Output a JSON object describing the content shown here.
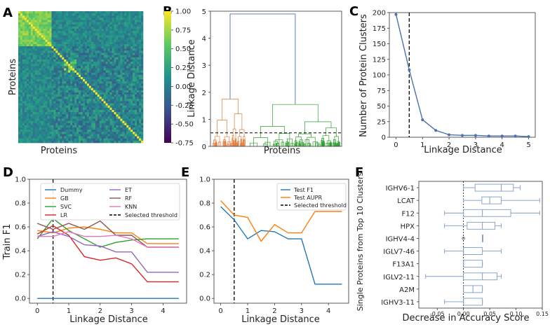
{
  "panel_labels": [
    "A",
    "B",
    "C",
    "D",
    "E",
    "F"
  ],
  "chart_data": [
    {
      "panel": "A",
      "type": "heatmap",
      "title": "",
      "xlabel": "Proteins",
      "ylabel": "Proteins",
      "colorbar_range": [
        -0.75,
        1.0
      ],
      "colorbar_ticks": [
        "1.00",
        "0.75",
        "0.50",
        "0.25",
        "0.00",
        "-0.25",
        "-0.50",
        "-0.75"
      ],
      "colormap": [
        "#440154",
        "#3b528b",
        "#21918c",
        "#5ec962",
        "#fde725"
      ]
    },
    {
      "panel": "B",
      "type": "dendrogram",
      "xlabel": "Proteins",
      "ylabel": "Linkage Distance",
      "ylim": [
        0,
        5
      ],
      "yticks": [
        "0",
        "1",
        "2",
        "3",
        "4",
        "5"
      ],
      "root_height": 4.9,
      "left_cluster_height": 1.75,
      "right_cluster_height": 1.55,
      "threshold": 0.5,
      "cluster_colors": [
        "#e07b39",
        "#2ca02c",
        "#4c72b0"
      ]
    },
    {
      "panel": "C",
      "type": "line",
      "xlabel": "Linkage Distance",
      "ylabel": "Number of Protein Clusters",
      "x": [
        0,
        0.5,
        1,
        1.5,
        2,
        2.5,
        3,
        3.5,
        4,
        4.5,
        5
      ],
      "values": [
        197,
        108,
        28,
        11,
        4,
        3,
        3,
        2,
        2,
        2,
        1
      ],
      "xlim": [
        -0.25,
        5.25
      ],
      "ylim": [
        0,
        200
      ],
      "xticks": [
        "0",
        "1",
        "2",
        "3",
        "4",
        "5"
      ],
      "yticks": [
        "0",
        "25",
        "50",
        "75",
        "100",
        "125",
        "150",
        "175",
        "200"
      ],
      "threshold": 0.5,
      "color": "#4c72b0"
    },
    {
      "panel": "D",
      "type": "line",
      "xlabel": "Linkage Distance",
      "ylabel": "Train F1",
      "x": [
        0,
        0.5,
        1,
        1.5,
        2,
        2.5,
        3,
        3.5,
        4,
        4.5
      ],
      "xlim": [
        -0.25,
        4.75
      ],
      "ylim": [
        -0.04,
        1.0
      ],
      "xticks": [
        "0",
        "1",
        "2",
        "3",
        "4"
      ],
      "yticks": [
        "0.0",
        "0.2",
        "0.4",
        "0.6",
        "0.8",
        "1.0"
      ],
      "threshold": 0.5,
      "threshold_label": "Selected threshold",
      "series": [
        {
          "name": "Dummy",
          "color": "#1f77b4",
          "values": [
            0,
            0,
            0,
            0,
            0,
            0,
            0,
            0,
            0,
            0
          ]
        },
        {
          "name": "GB",
          "color": "#ff7f0e",
          "values": [
            0.57,
            0.55,
            0.59,
            0.6,
            0.58,
            0.55,
            0.55,
            0.46,
            0.46,
            0.46
          ]
        },
        {
          "name": "SVC",
          "color": "#2ca02c",
          "values": [
            0.5,
            0.67,
            0.57,
            0.5,
            0.43,
            0.47,
            0.49,
            0.5,
            0.5,
            0.5
          ]
        },
        {
          "name": "LR",
          "color": "#d62728",
          "values": [
            0.54,
            0.61,
            0.53,
            0.35,
            0.32,
            0.34,
            0.29,
            0.14,
            0.14,
            0.14
          ]
        },
        {
          "name": "ET",
          "color": "#9467bd",
          "values": [
            0.52,
            0.56,
            0.52,
            0.45,
            0.44,
            0.39,
            0.39,
            0.22,
            0.22,
            0.22
          ]
        },
        {
          "name": "RF",
          "color": "#8c564b",
          "values": [
            0.63,
            0.58,
            0.63,
            0.58,
            0.65,
            0.53,
            0.53,
            0.43,
            0.43,
            0.43
          ]
        },
        {
          "name": "KNN",
          "color": "#e377c2",
          "values": [
            0.52,
            0.52,
            0.56,
            0.52,
            0.52,
            0.53,
            0.5,
            0.43,
            0.43,
            0.43
          ]
        }
      ]
    },
    {
      "panel": "E",
      "type": "line",
      "xlabel": "Linkage Distance",
      "ylabel": "",
      "x": [
        0,
        0.5,
        1,
        1.5,
        2,
        2.5,
        3,
        3.5,
        4,
        4.5
      ],
      "xlim": [
        -0.25,
        4.75
      ],
      "ylim": [
        -0.04,
        1.0
      ],
      "xticks": [
        "0",
        "1",
        "2",
        "3",
        "4"
      ],
      "yticks": [
        "0.0",
        "0.2",
        "0.4",
        "0.6",
        "0.8",
        "1.0"
      ],
      "threshold": 0.5,
      "threshold_label": "Selected threshold",
      "series": [
        {
          "name": "Test F1",
          "color": "#1f77b4",
          "values": [
            0.77,
            0.66,
            0.5,
            0.57,
            0.56,
            0.5,
            0.5,
            0.12,
            0.12,
            0.12
          ]
        },
        {
          "name": "Test AUPR",
          "color": "#ff7f0e",
          "values": [
            0.82,
            0.7,
            0.68,
            0.48,
            0.62,
            0.55,
            0.55,
            0.73,
            0.73,
            0.73
          ]
        }
      ]
    },
    {
      "panel": "F",
      "type": "boxplot",
      "xlabel": "Decrease in Accuracy Score",
      "ylabel": "Single Proteins from Top 10 Clusters",
      "xlim": [
        -0.085,
        0.15
      ],
      "xticks": [
        "-0.05",
        "0.00",
        "0.05",
        "0.10",
        "0.15"
      ],
      "categories": [
        "IGHV6-1",
        "LCAT",
        "F12",
        "HPX",
        "IGHV4-4",
        "IGLV7-46",
        "F13A1",
        "IGLV2-11",
        "A2M",
        "IGHV3-11"
      ],
      "boxes": [
        {
          "min": 0.0,
          "q1": 0.022,
          "median": 0.072,
          "q3": 0.095,
          "max": 0.108,
          "fliers": []
        },
        {
          "min": 0.0,
          "q1": 0.035,
          "median": 0.05,
          "q3": 0.072,
          "max": 0.145,
          "fliers": []
        },
        {
          "min": -0.036,
          "q1": 0.0,
          "median": 0.036,
          "q3": 0.09,
          "max": 0.145,
          "fliers": []
        },
        {
          "min": -0.036,
          "q1": 0.007,
          "median": 0.036,
          "q3": 0.06,
          "max": 0.072,
          "fliers": []
        },
        {
          "min": 0.036,
          "q1": 0.036,
          "median": 0.036,
          "q3": 0.036,
          "max": 0.036,
          "fliers": [
            0.0
          ]
        },
        {
          "min": -0.036,
          "q1": 0.0,
          "median": 0.0,
          "q3": 0.036,
          "max": 0.072,
          "fliers": []
        },
        {
          "min": 0.0,
          "q1": 0.0,
          "median": 0.0,
          "q3": 0.036,
          "max": 0.036,
          "fliers": []
        },
        {
          "min": -0.072,
          "q1": 0.0,
          "median": 0.036,
          "q3": 0.064,
          "max": 0.072,
          "fliers": []
        },
        {
          "min": 0.0,
          "q1": 0.0,
          "median": 0.018,
          "q3": 0.036,
          "max": 0.036,
          "fliers": []
        },
        {
          "min": -0.036,
          "q1": 0.0,
          "median": 0.0,
          "q3": 0.036,
          "max": 0.036,
          "fliers": []
        }
      ],
      "color": "#7f9cc4"
    }
  ]
}
